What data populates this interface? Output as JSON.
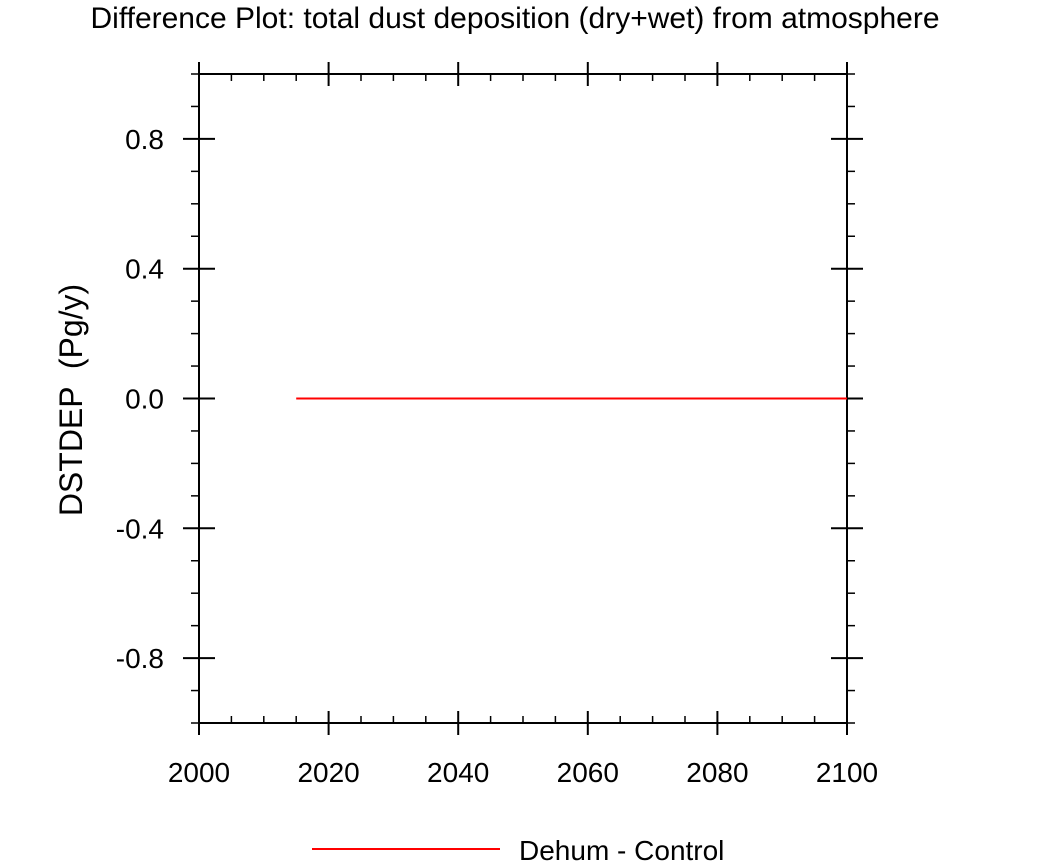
{
  "chart_data": {
    "type": "line",
    "title": "Difference Plot: total dust deposition (dry+wet) from atmosphere",
    "xlabel": "",
    "ylabel": "DSTDEP  (Pg/y)",
    "xlim": [
      2000,
      2100
    ],
    "ylim": [
      -1.0,
      1.0
    ],
    "x_ticks": [
      2000,
      2020,
      2040,
      2060,
      2080,
      2100
    ],
    "x_tick_labels": [
      "2000",
      "2020",
      "2040",
      "2060",
      "2080",
      "2100"
    ],
    "y_ticks": [
      -0.8,
      -0.4,
      0.0,
      0.4,
      0.8
    ],
    "y_tick_labels": [
      "-0.8",
      "-0.4",
      "0.0",
      "0.4",
      "0.8"
    ],
    "grid": false,
    "legend_position": "bottom-center",
    "series": [
      {
        "name": "Dehum - Control",
        "color": "#ff0000",
        "x": [
          2015,
          2100
        ],
        "y": [
          0.0,
          0.0
        ]
      }
    ]
  }
}
